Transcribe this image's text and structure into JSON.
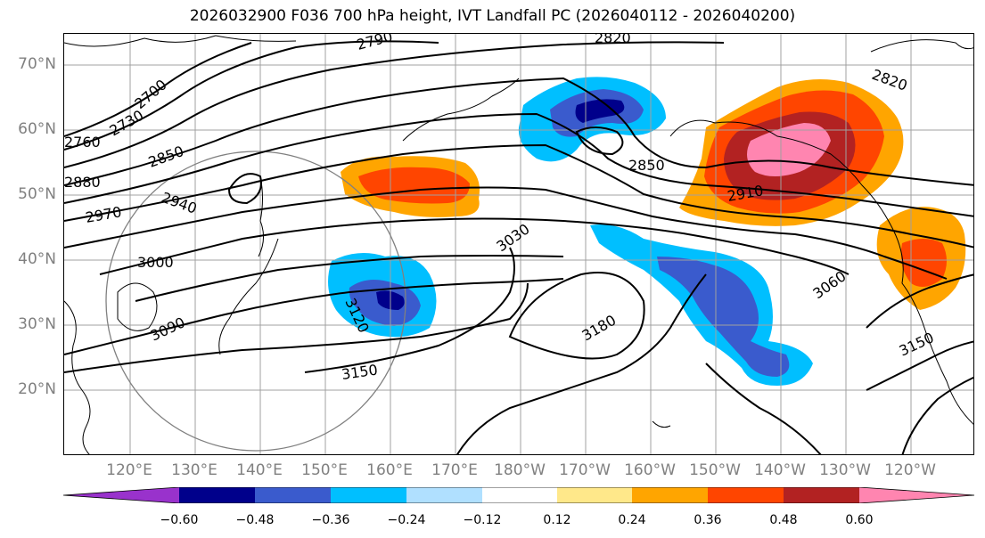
{
  "title": "2026032900 F036 700 hPa height, IVT Landfall PC (2026040112 - 2026040200)",
  "latitude_labels": [
    "70°N",
    "60°N",
    "50°N",
    "40°N",
    "30°N",
    "20°N"
  ],
  "longitude_labels": [
    "120°E",
    "130°E",
    "140°E",
    "150°E",
    "160°E",
    "170°E",
    "180°W",
    "170°W",
    "160°W",
    "150°W",
    "140°W",
    "130°W",
    "120°W"
  ],
  "contour_labels": [
    "2700",
    "2730",
    "2760",
    "2790",
    "2820",
    "2820",
    "2850",
    "2850",
    "2880",
    "2910",
    "2940",
    "2970",
    "3000",
    "3030",
    "3060",
    "3090",
    "3120",
    "3150",
    "3150",
    "3180"
  ],
  "colorbar": {
    "tick_labels": [
      "−0.60",
      "−0.48",
      "−0.36",
      "−0.24",
      "−0.12",
      "0.12",
      "0.24",
      "0.36",
      "0.48",
      "0.60"
    ],
    "colors": [
      "#9932cc",
      "#00008b",
      "#3a5bcd",
      "#00bfff",
      "#b0e0ff",
      "#ffffff",
      "#ffe88a",
      "#ffa500",
      "#ff4500",
      "#b22222",
      "#ff85b0"
    ]
  },
  "shading_colors": {
    "neg_light": "#00bfff",
    "neg_mid": "#3a5bcd",
    "neg_dark": "#00008b",
    "pos_yellow": "#ffe88a",
    "pos_orange": "#ffa500",
    "pos_red": "#ff4500",
    "pos_darkred": "#b22222",
    "pos_pink": "#ff85b0",
    "grid": "#a0a0a0",
    "contour": "#000000",
    "circle": "#808080"
  }
}
